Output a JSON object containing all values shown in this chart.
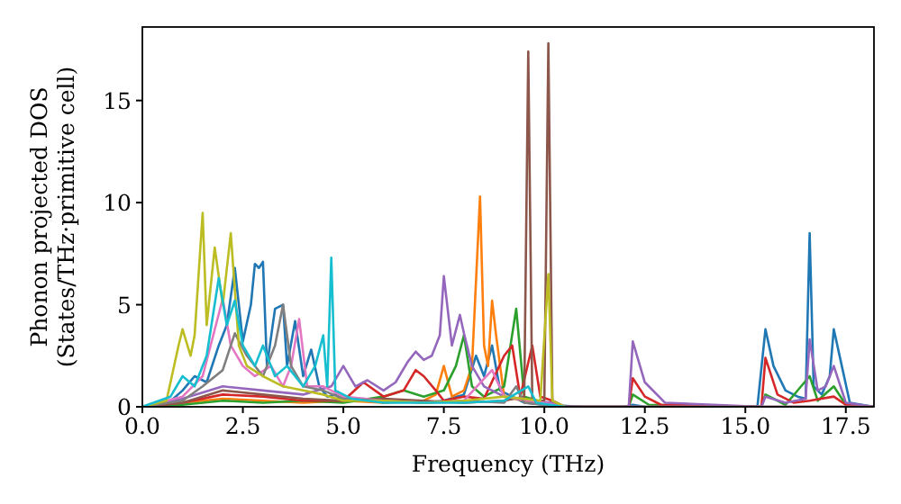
{
  "chart_data": {
    "type": "line",
    "xlabel": "Frequency (THz)",
    "ylabel": "Phonon projected DOS\n(States/THz·primitive cell)",
    "xlim": [
      0,
      18.2
    ],
    "xticks": [
      {
        "value": 0,
        "label": "0.0"
      },
      {
        "value": 2.5,
        "label": "2.5"
      },
      {
        "value": 5,
        "label": "5.0"
      },
      {
        "value": 7.5,
        "label": "7.5"
      },
      {
        "value": 10,
        "label": "10.0"
      },
      {
        "value": 12.5,
        "label": "12.5"
      },
      {
        "value": 15,
        "label": "15.0"
      },
      {
        "value": 17.5,
        "label": "17.5"
      }
    ],
    "ylim": [
      0,
      18.6
    ],
    "yticks": [
      0,
      5,
      10,
      15
    ],
    "grid": false,
    "series": [
      {
        "color": "#1f77b4",
        "x": [
          0,
          0.6,
          1.0,
          1.3,
          1.6,
          1.9,
          2.1,
          2.3,
          2.5,
          2.7,
          2.8,
          2.9,
          3.0,
          3.1,
          3.3,
          3.5,
          3.6,
          3.8,
          4.0,
          4.2,
          4.4,
          4.6,
          4.8,
          5.0,
          5.5,
          6.0,
          6.5,
          7.0,
          7.5,
          8.0,
          8.3,
          8.5,
          8.7,
          8.9,
          9.2,
          9.5,
          10.0,
          11,
          12,
          12.2,
          12.5,
          15.3,
          15.5,
          15.7,
          16.0,
          16.3,
          16.5,
          16.6,
          16.7,
          16.9,
          17.1,
          17.2,
          17.4,
          17.6,
          18.2
        ],
        "values": [
          0,
          0.1,
          0.8,
          1.5,
          1.2,
          3,
          4,
          6.8,
          3.2,
          5,
          7,
          6.8,
          7.1,
          2,
          4.8,
          5,
          2,
          4.2,
          1.5,
          2.8,
          1,
          0.5,
          0.6,
          0.3,
          0.4,
          0.2,
          0.3,
          0.2,
          0.3,
          0.6,
          2.5,
          1.5,
          3,
          0.8,
          0.5,
          0.2,
          0.1,
          0,
          0,
          0.1,
          0,
          0,
          3.8,
          2,
          0.8,
          0.5,
          0.4,
          8.5,
          1,
          0.6,
          1.5,
          3.8,
          2,
          0.2,
          0
        ]
      },
      {
        "color": "#ff7f0e",
        "x": [
          0,
          1,
          2,
          3,
          4,
          5,
          6,
          7,
          7.3,
          7.5,
          7.7,
          8.0,
          8.2,
          8.4,
          8.5,
          8.6,
          8.7,
          8.8,
          9.0,
          9.5,
          10.0
        ],
        "values": [
          0,
          0.2,
          0.4,
          0.3,
          0.2,
          0.3,
          0.2,
          0.3,
          0.6,
          2,
          0.5,
          0.8,
          2,
          10.3,
          3,
          2,
          5.2,
          3.5,
          0.5,
          0.3,
          0.2
        ]
      },
      {
        "color": "#2ca02c",
        "x": [
          0,
          1,
          2,
          3,
          4,
          5,
          6,
          6.5,
          7,
          7.5,
          7.8,
          8.0,
          8.2,
          8.5,
          9.0,
          9.3,
          9.5,
          10,
          10.5,
          12.1,
          12.2,
          12.6,
          15.4,
          15.5,
          16,
          16.6,
          16.8,
          17.2,
          17.5,
          18.2
        ],
        "values": [
          0,
          0.1,
          0.3,
          0.2,
          0.3,
          0.2,
          0.5,
          0.8,
          0.5,
          0.8,
          2,
          3.5,
          1,
          0.5,
          1,
          4.8,
          0.5,
          0.2,
          0,
          0,
          0.6,
          0.1,
          0,
          0.6,
          0.1,
          1.5,
          0.3,
          1,
          0.1,
          0
        ]
      },
      {
        "color": "#d62728",
        "x": [
          0,
          1,
          2,
          3,
          4,
          5,
          5.5,
          6,
          6.5,
          6.8,
          7.0,
          7.3,
          7.5,
          8,
          8.5,
          9.0,
          9.2,
          9.4,
          9.7,
          9.9,
          10.2,
          10.5,
          12.1,
          12.2,
          12.5,
          12.9,
          15.4,
          15.5,
          15.8,
          16.2,
          16.6,
          17.2,
          17.5,
          18.2
        ],
        "values": [
          0,
          0.2,
          0.6,
          0.5,
          0.3,
          0.3,
          1.2,
          0.5,
          0.8,
          1.8,
          1.5,
          0.8,
          0.3,
          0.5,
          0.4,
          2.5,
          3,
          0.5,
          3,
          0.5,
          0.3,
          0,
          0,
          1.4,
          0.5,
          0.1,
          0,
          2.4,
          0.6,
          0.2,
          0.3,
          0.5,
          0.1,
          0
        ]
      },
      {
        "color": "#9467bd",
        "x": [
          0,
          1,
          2,
          3,
          4,
          4.7,
          5,
          5.3,
          5.6,
          6,
          6.3,
          6.6,
          6.8,
          7.0,
          7.2,
          7.4,
          7.5,
          7.7,
          7.9,
          8.0,
          8.2,
          8.5,
          9,
          9.6,
          10.2,
          10.5,
          12.1,
          12.2,
          12.5,
          13,
          15.4,
          15.5,
          16,
          16.5,
          16.6,
          16.8,
          17.0,
          17.2,
          17.5,
          18.2
        ],
        "values": [
          0,
          0.4,
          1,
          0.8,
          0.6,
          1,
          2,
          1,
          1.3,
          0.8,
          1.2,
          2.2,
          2.7,
          2.3,
          2.5,
          3.5,
          6.4,
          3,
          4.5,
          3.6,
          2,
          1,
          0.5,
          0.3,
          0.2,
          0,
          0,
          3.2,
          1.2,
          0.2,
          0,
          0.5,
          0.2,
          0.4,
          3.3,
          0.8,
          1,
          2,
          0.2,
          0
        ]
      },
      {
        "color": "#8c564b",
        "x": [
          0,
          1,
          2,
          3,
          4,
          5,
          6,
          7,
          8,
          9,
          9.5,
          9.6,
          9.7,
          10.0,
          10.1,
          10.2,
          10.5,
          18.2
        ],
        "values": [
          0,
          0.2,
          0.8,
          0.6,
          0.4,
          0.3,
          0.4,
          0.3,
          0.2,
          0.3,
          0.5,
          17.4,
          0.3,
          0.3,
          17.8,
          0.3,
          0,
          0
        ]
      },
      {
        "color": "#e377c2",
        "x": [
          0,
          1,
          1.5,
          2.0,
          2.2,
          2.5,
          2.8,
          3.2,
          3.5,
          3.7,
          3.9,
          4.1,
          4.5,
          5,
          6,
          7,
          8,
          8.7,
          9,
          10,
          10.5,
          18.2
        ],
        "values": [
          0,
          0.5,
          1.5,
          5.3,
          3,
          2,
          1.5,
          2,
          1,
          2,
          4.3,
          1,
          1,
          0.5,
          0.3,
          0.2,
          0.3,
          1.8,
          0.5,
          0.2,
          0,
          0
        ]
      },
      {
        "color": "#7f7f7f",
        "x": [
          0,
          1,
          1.5,
          2.0,
          2.3,
          2.6,
          3.0,
          3.3,
          3.5,
          3.7,
          4.0,
          4.5,
          5,
          6,
          7,
          8,
          9,
          9.3,
          9.5,
          10.5,
          18.2
        ],
        "values": [
          0,
          0.3,
          1,
          1.8,
          3.6,
          2.5,
          1.5,
          3,
          5,
          2,
          1,
          0.8,
          0.4,
          0.3,
          0.2,
          0.3,
          0.2,
          1,
          0.2,
          0,
          0
        ]
      },
      {
        "color": "#bcbd22",
        "x": [
          0,
          0.6,
          0.9,
          1.0,
          1.2,
          1.3,
          1.5,
          1.6,
          1.8,
          2.0,
          2.2,
          2.4,
          2.6,
          3.0,
          3.5,
          4.0,
          4.5,
          5,
          6,
          7,
          8,
          9,
          9.9,
          10.1,
          10.2,
          10.5
        ],
        "values": [
          0,
          0.3,
          3,
          3.8,
          2.5,
          3.5,
          9.5,
          4,
          7.8,
          5,
          8.5,
          3,
          2,
          1.5,
          1,
          0.8,
          0.6,
          0.3,
          0.3,
          0.2,
          0.3,
          0.5,
          0.3,
          6.5,
          0.3,
          0
        ]
      },
      {
        "color": "#17becf",
        "x": [
          0,
          0.7,
          1.0,
          1.3,
          1.6,
          1.9,
          2.1,
          2.3,
          2.5,
          2.8,
          3.0,
          3.3,
          3.6,
          4.0,
          4.3,
          4.5,
          4.6,
          4.7,
          4.8,
          5.2,
          6,
          7,
          8,
          9,
          9.6,
          9.8,
          10.5
        ],
        "values": [
          0,
          0.5,
          1.5,
          1,
          2.5,
          6.3,
          4,
          5.2,
          3,
          2,
          3,
          1.5,
          2,
          1,
          2,
          3.5,
          1,
          7.3,
          0.8,
          0.4,
          0.2,
          0.2,
          0.2,
          0.3,
          1,
          0.2,
          0
        ]
      }
    ]
  }
}
